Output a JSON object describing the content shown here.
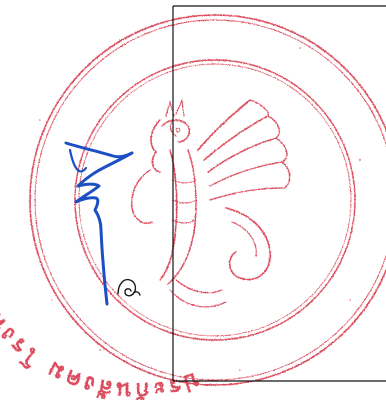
{
  "document": {
    "seal": {
      "kind": "official-seal",
      "ink_color": "#d21f33",
      "emblem": "garuda-emblem",
      "ring_text": "ประกันสังคม โรงพยาบาล"
    },
    "signature": {
      "kind": "handwritten-signature",
      "ink_color": "#1d4fc4",
      "initial_mark": "ก"
    },
    "form_box": {
      "border_color": "#111111"
    }
  }
}
